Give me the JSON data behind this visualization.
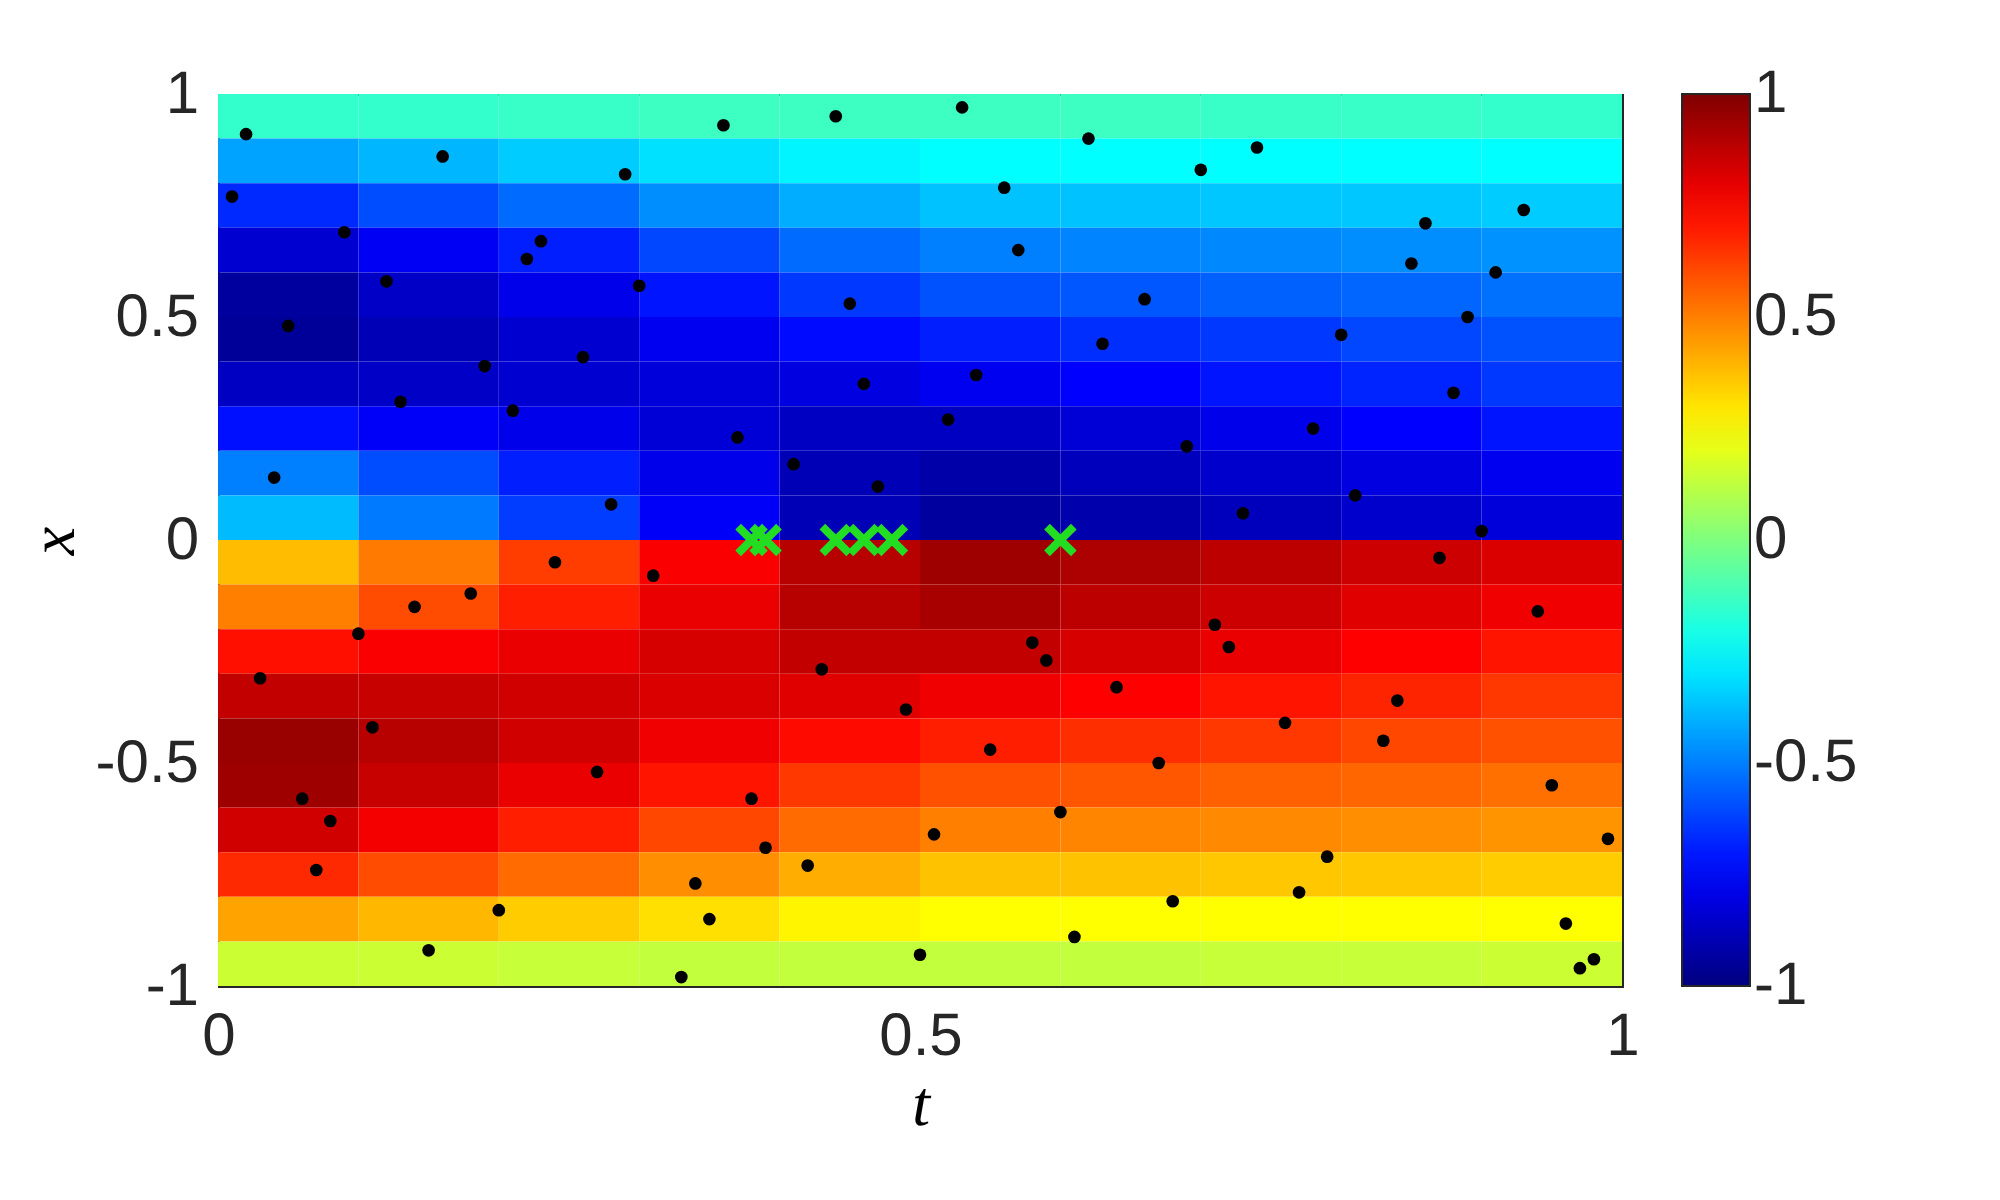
{
  "chart_data": {
    "type": "heatmap",
    "xlabel": "t",
    "ylabel": "x",
    "xlim": [
      0,
      1
    ],
    "xticks": [
      0,
      0.5,
      1
    ],
    "ylim": [
      -1,
      1
    ],
    "yticks": [
      -1,
      -0.5,
      0,
      0.5,
      1
    ],
    "clim": [
      -1,
      1
    ],
    "cticks": [
      -1,
      -0.5,
      0,
      0.5,
      1
    ],
    "x": [
      0.05,
      0.15,
      0.25,
      0.35,
      0.45,
      0.55,
      0.65,
      0.75,
      0.85,
      0.95
    ],
    "y": [
      0.95,
      0.85,
      0.75,
      0.65,
      0.55,
      0.45,
      0.35,
      0.25,
      0.15,
      0.05,
      -0.05,
      -0.15,
      -0.25,
      -0.35,
      -0.45,
      -0.55,
      -0.65,
      -0.75,
      -0.85,
      -0.95
    ],
    "cells": [
      [
        -0.15,
        -0.15,
        -0.14,
        -0.13,
        -0.13,
        -0.13,
        -0.13,
        -0.14,
        -0.14,
        -0.15
      ],
      [
        -0.43,
        -0.39,
        -0.35,
        -0.31,
        -0.27,
        -0.25,
        -0.25,
        -0.25,
        -0.25,
        -0.25
      ],
      [
        -0.67,
        -0.6,
        -0.54,
        -0.47,
        -0.41,
        -0.37,
        -0.37,
        -0.36,
        -0.36,
        -0.35
      ],
      [
        -0.84,
        -0.77,
        -0.69,
        -0.61,
        -0.54,
        -0.5,
        -0.49,
        -0.48,
        -0.47,
        -0.46
      ],
      [
        -0.94,
        -0.86,
        -0.79,
        -0.71,
        -0.64,
        -0.59,
        -0.58,
        -0.56,
        -0.55,
        -0.53
      ],
      [
        -0.95,
        -0.89,
        -0.84,
        -0.78,
        -0.73,
        -0.69,
        -0.66,
        -0.64,
        -0.61,
        -0.59
      ],
      [
        -0.87,
        -0.86,
        -0.84,
        -0.82,
        -0.81,
        -0.78,
        -0.75,
        -0.71,
        -0.68,
        -0.64
      ],
      [
        -0.72,
        -0.76,
        -0.79,
        -0.83,
        -0.87,
        -0.87,
        -0.83,
        -0.79,
        -0.75,
        -0.71
      ],
      [
        -0.5,
        -0.6,
        -0.69,
        -0.79,
        -0.89,
        -0.92,
        -0.88,
        -0.85,
        -0.81,
        -0.78
      ],
      [
        -0.38,
        -0.51,
        -0.63,
        -0.76,
        -0.89,
        -0.94,
        -0.91,
        -0.88,
        -0.85,
        -0.82
      ],
      [
        0.38,
        0.51,
        0.63,
        0.76,
        0.89,
        0.94,
        0.91,
        0.88,
        0.85,
        0.82
      ],
      [
        0.5,
        0.6,
        0.69,
        0.79,
        0.89,
        0.92,
        0.88,
        0.85,
        0.81,
        0.78
      ],
      [
        0.72,
        0.76,
        0.79,
        0.83,
        0.87,
        0.87,
        0.83,
        0.79,
        0.75,
        0.71
      ],
      [
        0.87,
        0.86,
        0.84,
        0.82,
        0.81,
        0.78,
        0.75,
        0.71,
        0.68,
        0.64
      ],
      [
        0.95,
        0.89,
        0.84,
        0.78,
        0.73,
        0.69,
        0.66,
        0.64,
        0.61,
        0.59
      ],
      [
        0.94,
        0.86,
        0.79,
        0.71,
        0.64,
        0.59,
        0.58,
        0.56,
        0.55,
        0.53
      ],
      [
        0.84,
        0.77,
        0.69,
        0.61,
        0.54,
        0.5,
        0.49,
        0.48,
        0.47,
        0.46
      ],
      [
        0.67,
        0.6,
        0.54,
        0.47,
        0.41,
        0.37,
        0.37,
        0.36,
        0.36,
        0.35
      ],
      [
        0.43,
        0.39,
        0.35,
        0.31,
        0.27,
        0.25,
        0.25,
        0.25,
        0.25,
        0.25
      ],
      [
        0.15,
        0.15,
        0.14,
        0.13,
        0.13,
        0.13,
        0.13,
        0.14,
        0.14,
        0.15
      ]
    ],
    "series": [
      {
        "type": "scatter",
        "marker": "circle",
        "color": "#000000",
        "x": [
          0.02,
          0.11,
          0.23,
          0.35,
          0.47,
          0.58,
          0.66,
          0.79,
          0.88,
          0.97,
          0.05,
          0.14,
          0.29,
          0.38,
          0.52,
          0.61,
          0.73,
          0.84,
          0.93,
          0.08,
          0.19,
          0.31,
          0.44,
          0.55,
          0.69,
          0.77,
          0.91,
          0.03,
          0.16,
          0.27,
          0.41,
          0.5,
          0.63,
          0.71,
          0.86,
          0.99,
          0.12,
          0.24,
          0.36,
          0.49,
          0.57,
          0.68,
          0.81,
          0.95,
          0.07,
          0.21,
          0.33,
          0.45,
          0.59,
          0.74,
          0.83,
          0.9,
          0.01,
          0.18,
          0.26,
          0.39,
          0.53,
          0.64,
          0.78,
          0.96,
          0.1,
          0.22,
          0.34,
          0.46,
          0.6,
          0.7,
          0.87,
          0.04,
          0.15,
          0.3,
          0.43,
          0.56,
          0.67,
          0.8,
          0.94,
          0.09,
          0.2,
          0.37,
          0.51,
          0.62,
          0.76,
          0.89,
          0.06,
          0.28,
          0.42,
          0.54,
          0.72,
          0.85,
          0.98,
          0.13
        ],
        "values": [
          0.91,
          -0.42,
          0.67,
          -0.85,
          0.12,
          -0.23,
          0.54,
          -0.71,
          0.33,
          -0.96,
          0.48,
          -0.15,
          0.82,
          -0.58,
          0.27,
          -0.89,
          0.06,
          -0.36,
          0.74,
          -0.63,
          0.39,
          -0.08,
          0.95,
          -0.47,
          0.21,
          -0.79,
          0.6,
          -0.31,
          0.86,
          -0.52,
          0.17,
          -0.93,
          0.44,
          -0.19,
          0.71,
          -0.67,
          0.58,
          -0.05,
          0.93,
          -0.38,
          0.65,
          -0.81,
          0.1,
          -0.55,
          -0.74,
          0.29,
          -0.98,
          0.53,
          -0.27,
          0.88,
          -0.45,
          0.02,
          0.77,
          -0.12,
          0.41,
          -0.69,
          0.97,
          -0.33,
          0.25,
          -0.86,
          -0.21,
          0.63,
          -0.77,
          0.35,
          -0.61,
          0.83,
          -0.04,
          0.14,
          -0.92,
          0.57,
          -0.29,
          0.79,
          -0.5,
          0.46,
          -0.16,
          0.69,
          -0.83,
          0.23,
          -0.66,
          0.9,
          -0.41,
          0.5,
          -0.58,
          0.08,
          -0.73,
          0.37,
          -0.24,
          0.62,
          -0.94,
          0.31
        ]
      },
      {
        "type": "scatter",
        "marker": "cross",
        "color": "#22dd22",
        "x": [
          0.38,
          0.39,
          0.44,
          0.46,
          0.48,
          0.6
        ],
        "values": [
          0,
          0,
          0,
          0,
          0,
          0
        ]
      }
    ]
  }
}
